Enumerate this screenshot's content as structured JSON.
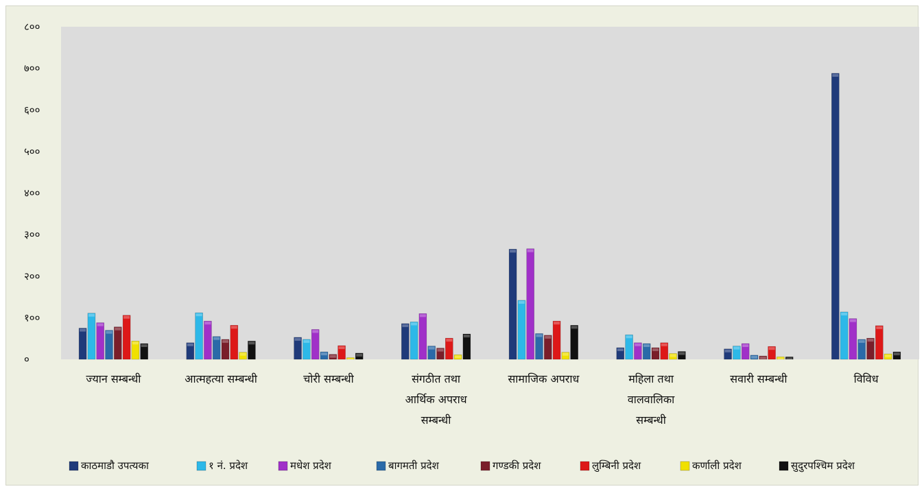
{
  "chart_data": {
    "type": "bar",
    "categories": [
      [
        "ज्यान सम्बन्धी"
      ],
      [
        "आत्महत्या सम्बन्धी"
      ],
      [
        "चोरी सम्बन्धी"
      ],
      [
        "संगठीत तथा",
        "आर्थिक अपराध",
        "सम्बन्धी"
      ],
      [
        "सामाजिक अपराध"
      ],
      [
        "महिला तथा",
        "वालवालिका",
        "सम्बन्धी"
      ],
      [
        "सवारी सम्बन्धी"
      ],
      [
        "विविध"
      ]
    ],
    "ylim": [
      0,
      800
    ],
    "yticks": [
      {
        "value": 0,
        "label": "०"
      },
      {
        "value": 100,
        "label": "१००"
      },
      {
        "value": 200,
        "label": "२००"
      },
      {
        "value": 300,
        "label": "३००"
      },
      {
        "value": 400,
        "label": "४००"
      },
      {
        "value": 500,
        "label": "५००"
      },
      {
        "value": 600,
        "label": "६००"
      },
      {
        "value": 700,
        "label": "७००"
      },
      {
        "value": 800,
        "label": "८००"
      }
    ],
    "grid": false,
    "legend_position": "bottom",
    "series": [
      {
        "name": "काठमाडौ उपत्यका",
        "color": "#1f3a7a",
        "values": [
          75,
          40,
          53,
          86,
          265,
          28,
          25,
          688
        ]
      },
      {
        "name": "१ नं. प्रदेश",
        "color": "#2db8e8",
        "values": [
          111,
          112,
          48,
          90,
          142,
          59,
          32,
          114
        ]
      },
      {
        "name": "मधेश प्रदेश",
        "color": "#a030c8",
        "values": [
          88,
          92,
          72,
          110,
          266,
          40,
          38,
          98
        ]
      },
      {
        "name": "बागमती प्रदेश",
        "color": "#2a6aa8",
        "values": [
          70,
          55,
          18,
          32,
          62,
          38,
          10,
          48
        ]
      },
      {
        "name": "गण्डकी प्रदेश",
        "color": "#7a1e2a",
        "values": [
          78,
          48,
          12,
          27,
          58,
          28,
          8,
          51
        ]
      },
      {
        "name": "लुम्बिनी प्रदेश",
        "color": "#dd1818",
        "values": [
          106,
          82,
          33,
          51,
          92,
          40,
          31,
          81
        ]
      },
      {
        "name": "कर्णाली प्रदेश",
        "color": "#f0e000",
        "values": [
          44,
          17,
          4,
          11,
          17,
          14,
          6,
          13
        ]
      },
      {
        "name": "सुदुरपश्चिम प्रदेश",
        "color": "#111111",
        "values": [
          38,
          44,
          15,
          61,
          82,
          19,
          6,
          18
        ]
      }
    ]
  }
}
